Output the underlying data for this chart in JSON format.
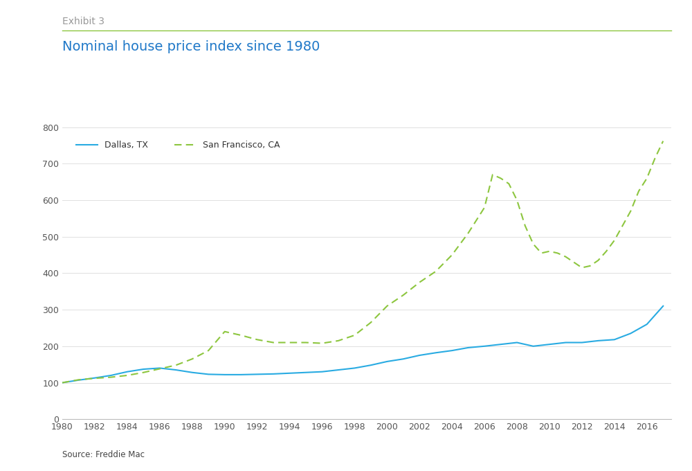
{
  "title": "Nominal house price index since 1980",
  "exhibit_label": "Exhibit 3",
  "source": "Source: Freddie Mac",
  "exhibit_color": "#999999",
  "title_color": "#1F78C8",
  "line_color_dallas": "#29ABE2",
  "line_color_sf": "#8DC63F",
  "exhibit_line_color": "#8DC63F",
  "background_color": "#ffffff",
  "ylim": [
    0,
    800
  ],
  "yticks": [
    0,
    100,
    200,
    300,
    400,
    500,
    600,
    700,
    800
  ],
  "xlim": [
    1980,
    2017.5
  ],
  "xticks": [
    1980,
    1982,
    1984,
    1986,
    1988,
    1990,
    1992,
    1994,
    1996,
    1998,
    2000,
    2002,
    2004,
    2006,
    2008,
    2010,
    2012,
    2014,
    2016
  ],
  "dallas": {
    "years": [
      1980,
      1981,
      1982,
      1983,
      1984,
      1985,
      1986,
      1987,
      1988,
      1989,
      1990,
      1991,
      1992,
      1993,
      1994,
      1995,
      1996,
      1997,
      1998,
      1999,
      2000,
      2001,
      2002,
      2003,
      2004,
      2005,
      2006,
      2007,
      2008,
      2009,
      2010,
      2011,
      2012,
      2013,
      2014,
      2015,
      2016,
      2017
    ],
    "values": [
      100,
      107,
      113,
      120,
      130,
      137,
      140,
      135,
      128,
      123,
      122,
      122,
      123,
      124,
      126,
      128,
      130,
      135,
      140,
      148,
      158,
      165,
      175,
      182,
      188,
      196,
      200,
      205,
      210,
      200,
      205,
      210,
      210,
      215,
      218,
      235,
      260,
      310
    ]
  },
  "sf": {
    "years": [
      1980,
      1981,
      1982,
      1983,
      1984,
      1985,
      1986,
      1987,
      1988,
      1989,
      1990,
      1991,
      1992,
      1993,
      1994,
      1995,
      1996,
      1997,
      1998,
      1999,
      2000,
      2001,
      2002,
      2003,
      2004,
      2005,
      2006,
      2006.5,
      2007,
      2007.5,
      2008,
      2008.5,
      2009,
      2009.5,
      2010,
      2010.5,
      2011,
      2011.5,
      2012,
      2012.5,
      2013,
      2013.5,
      2014,
      2014.5,
      2015,
      2015.5,
      2016,
      2016.5,
      2017
    ],
    "values": [
      100,
      108,
      112,
      115,
      120,
      128,
      138,
      148,
      165,
      188,
      240,
      230,
      218,
      210,
      210,
      210,
      208,
      215,
      230,
      265,
      310,
      340,
      375,
      405,
      450,
      510,
      580,
      670,
      660,
      645,
      600,
      530,
      480,
      455,
      460,
      455,
      445,
      430,
      415,
      420,
      435,
      460,
      490,
      530,
      570,
      625,
      660,
      715,
      762
    ]
  },
  "legend": {
    "dallas_label": "Dallas, TX",
    "sf_label": "San Francisco, CA"
  }
}
